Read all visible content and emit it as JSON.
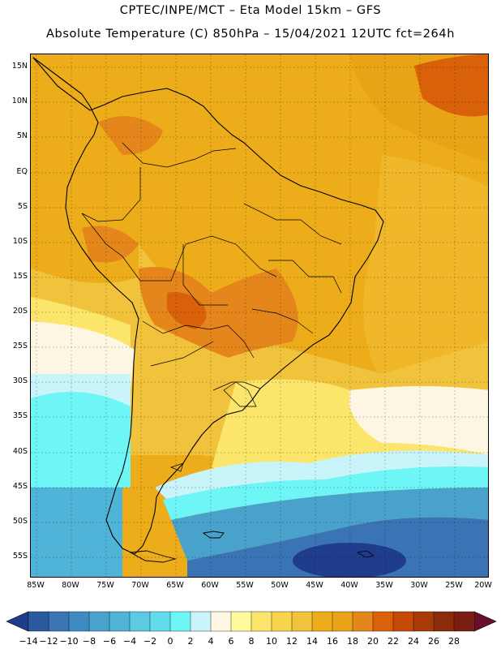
{
  "header": {
    "line1": "CPTEC/INPE/MCT –   Eta Model 15km – GFS",
    "line2": "Absolute Temperature (C) 850hPa – 15/04/2021 12UTC fct=264h"
  },
  "axes": {
    "lat_ticks": [
      "15N",
      "10N",
      "5N",
      "EQ",
      "5S",
      "10S",
      "15S",
      "20S",
      "25S",
      "30S",
      "35S",
      "40S",
      "45S",
      "50S",
      "55S"
    ],
    "lon_ticks": [
      "85W",
      "80W",
      "75W",
      "70W",
      "65W",
      "60W",
      "55W",
      "50W",
      "45W",
      "40W",
      "35W",
      "30W",
      "25W",
      "20W"
    ]
  },
  "colorbar": {
    "labels": [
      "−14",
      "−12",
      "−10",
      "−8",
      "−6",
      "−4",
      "−2",
      "0",
      "2",
      "4",
      "6",
      "8",
      "10",
      "12",
      "14",
      "16",
      "18",
      "20",
      "22",
      "24",
      "26",
      "28"
    ],
    "colors": [
      "#203c8c",
      "#2a5aa0",
      "#3a74b4",
      "#3e8bc4",
      "#48a2cc",
      "#50b4d8",
      "#5ccae2",
      "#62dcea",
      "#6ef6f6",
      "#c8f4fa",
      "#fdf6e2",
      "#fffa9c",
      "#fbe56a",
      "#f7d44e",
      "#f1c33c",
      "#edad1a",
      "#e9a316",
      "#e4861c",
      "#d8610a",
      "#c44a06",
      "#a83a0a",
      "#8c2a0c",
      "#7a1e14",
      "#6a0e2a"
    ]
  },
  "legend": {
    "temp_colors": {
      "deep_blue": "#203c8c",
      "cyan": "#6ef6f6",
      "cream": "#fdf6e2",
      "yellow": "#f1c33c",
      "orange": "#edad1a",
      "dark_orange": "#d8610a"
    }
  }
}
